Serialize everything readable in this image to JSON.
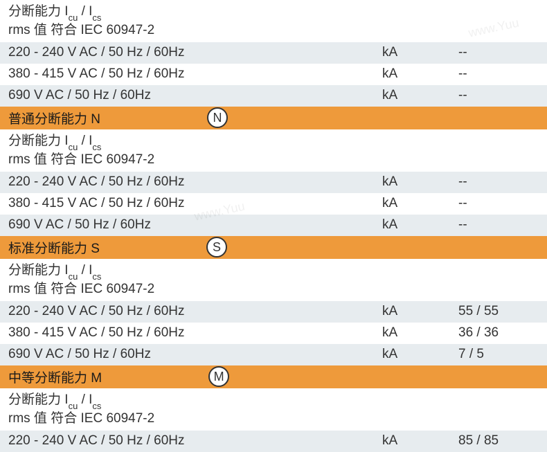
{
  "colors": {
    "light_row": "#e7ecef",
    "white_row": "#ffffff",
    "orange_row": "#ee9a3b",
    "text": "#333333",
    "circle_border": "#333333",
    "circle_bg": "#ffffff"
  },
  "top": {
    "header_line1_pre": "分断能力 I",
    "header_line1_sub1": "cu",
    "header_line1_mid": " / I",
    "header_line1_sub2": "cs",
    "header_line2": "rms 值 符合 IEC 60947-2",
    "rows": [
      {
        "label": "220 - 240 V AC / 50 Hz / 60Hz",
        "unit": "kA",
        "value": "--"
      },
      {
        "label": "380 - 415 V AC / 50 Hz / 60Hz",
        "unit": "kA",
        "value": "--"
      },
      {
        "label": "690 V AC / 50 Hz / 60Hz",
        "unit": "kA",
        "value": "--"
      }
    ]
  },
  "section_n": {
    "title": "普通分断能力 N",
    "badge": "N",
    "header_line1_pre": "分断能力 I",
    "header_line1_sub1": "cu",
    "header_line1_mid": " / I",
    "header_line1_sub2": "cs",
    "header_line2": "rms 值 符合 IEC 60947-2",
    "rows": [
      {
        "label": "220 - 240 V AC / 50 Hz / 60Hz",
        "unit": "kA",
        "value": "--"
      },
      {
        "label": "380 - 415 V AC / 50 Hz / 60Hz",
        "unit": "kA",
        "value": "--"
      },
      {
        "label": "690 V AC / 50 Hz / 60Hz",
        "unit": "kA",
        "value": "--"
      }
    ]
  },
  "section_s": {
    "title": "标准分断能力 S",
    "badge": "S",
    "header_line1_pre": "分断能力 I",
    "header_line1_sub1": "cu",
    "header_line1_mid": " / I",
    "header_line1_sub2": "cs",
    "header_line2": "rms 值 符合 IEC 60947-2",
    "rows": [
      {
        "label": "220 - 240 V AC / 50 Hz / 60Hz",
        "unit": "kA",
        "value": "55 / 55"
      },
      {
        "label": "380 - 415 V AC / 50 Hz / 60Hz",
        "unit": "kA",
        "value": "36 / 36"
      },
      {
        "label": "690 V AC / 50 Hz / 60Hz",
        "unit": "kA",
        "value": "7 / 5"
      }
    ]
  },
  "section_m": {
    "title": "中等分断能力 M",
    "badge": "M",
    "header_line1_pre": "分断能力 I",
    "header_line1_sub1": "cu",
    "header_line1_mid": " / I",
    "header_line1_sub2": "cs",
    "header_line2": "rms 值 符合 IEC 60947-2",
    "rows": [
      {
        "label": "220 - 240 V AC / 50 Hz / 60Hz",
        "unit": "kA",
        "value": "85 / 85"
      }
    ]
  },
  "watermark": "www.Yuu"
}
